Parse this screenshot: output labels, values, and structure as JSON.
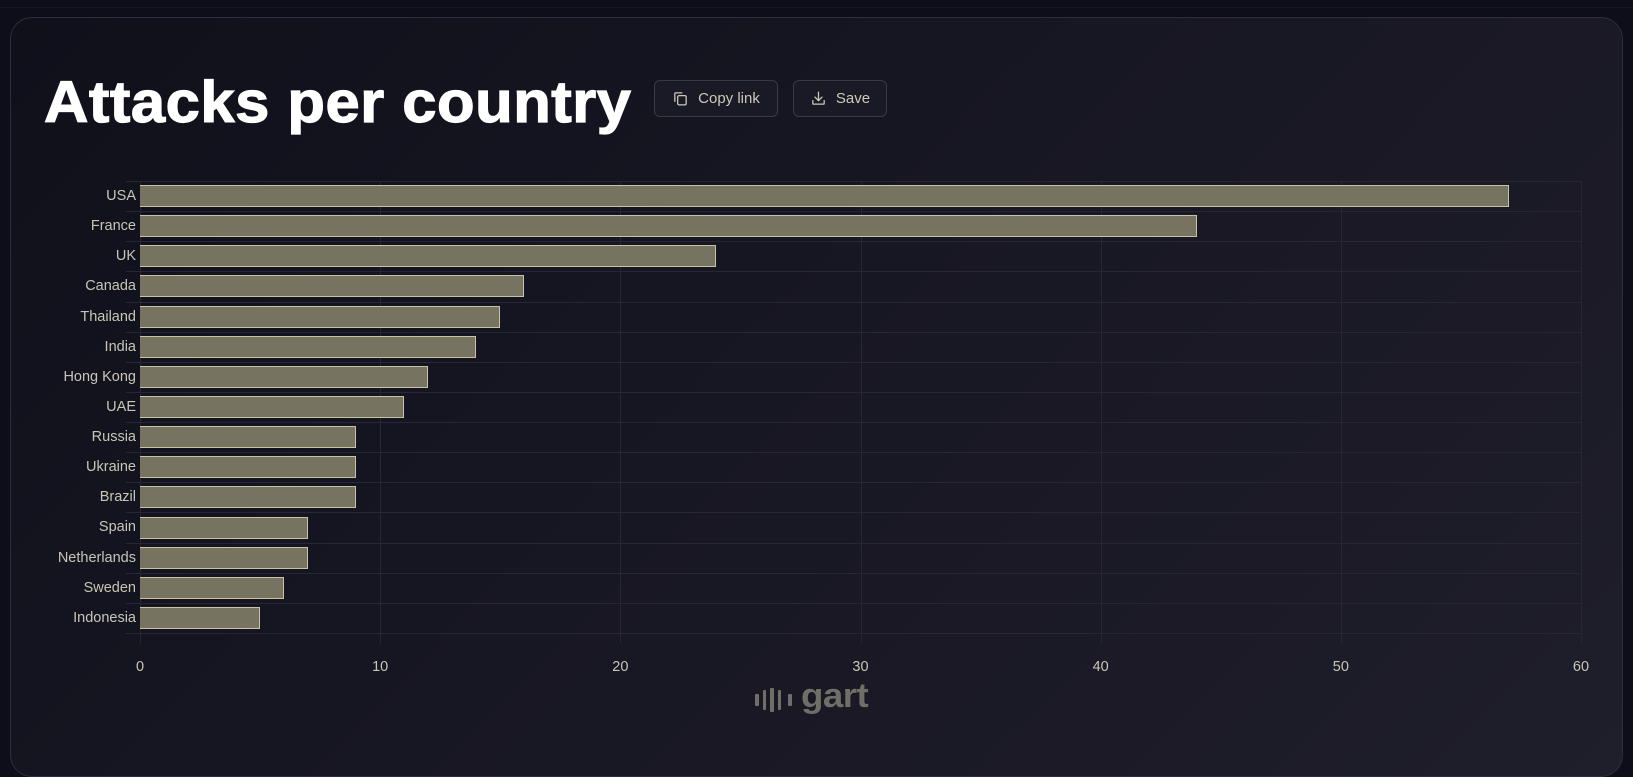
{
  "header": {
    "title": "Attacks per country",
    "copy_link_label": "Copy link",
    "save_label": "Save",
    "copy_icon": "copy-icon",
    "save_icon": "download-icon"
  },
  "footer": {
    "logo_text": "gart"
  },
  "colors": {
    "page_bg": "#0e0e1a",
    "card_bg": "#161622",
    "bar_fill": "#777361",
    "bar_border": "#c9c3a6",
    "grid": "#272636",
    "label_text": "#c9c5b6",
    "title_text": "#ffffff",
    "logo": "#6f6e67"
  },
  "chart_data": {
    "type": "bar",
    "orientation": "horizontal",
    "title": "Attacks per country",
    "xlabel": "",
    "ylabel": "",
    "categories": [
      "USA",
      "France",
      "UK",
      "Canada",
      "Thailand",
      "India",
      "Hong Kong",
      "UAE",
      "Russia",
      "Ukraine",
      "Brazil",
      "Spain",
      "Netherlands",
      "Sweden",
      "Indonesia"
    ],
    "values": [
      57,
      44,
      24,
      16,
      15,
      14,
      12,
      11,
      9,
      9,
      9,
      7,
      7,
      6,
      5
    ],
    "xlim": [
      0,
      60
    ],
    "xticks": [
      "0",
      "10",
      "20",
      "30",
      "40",
      "50",
      "60"
    ],
    "grid": true,
    "legend": null
  }
}
